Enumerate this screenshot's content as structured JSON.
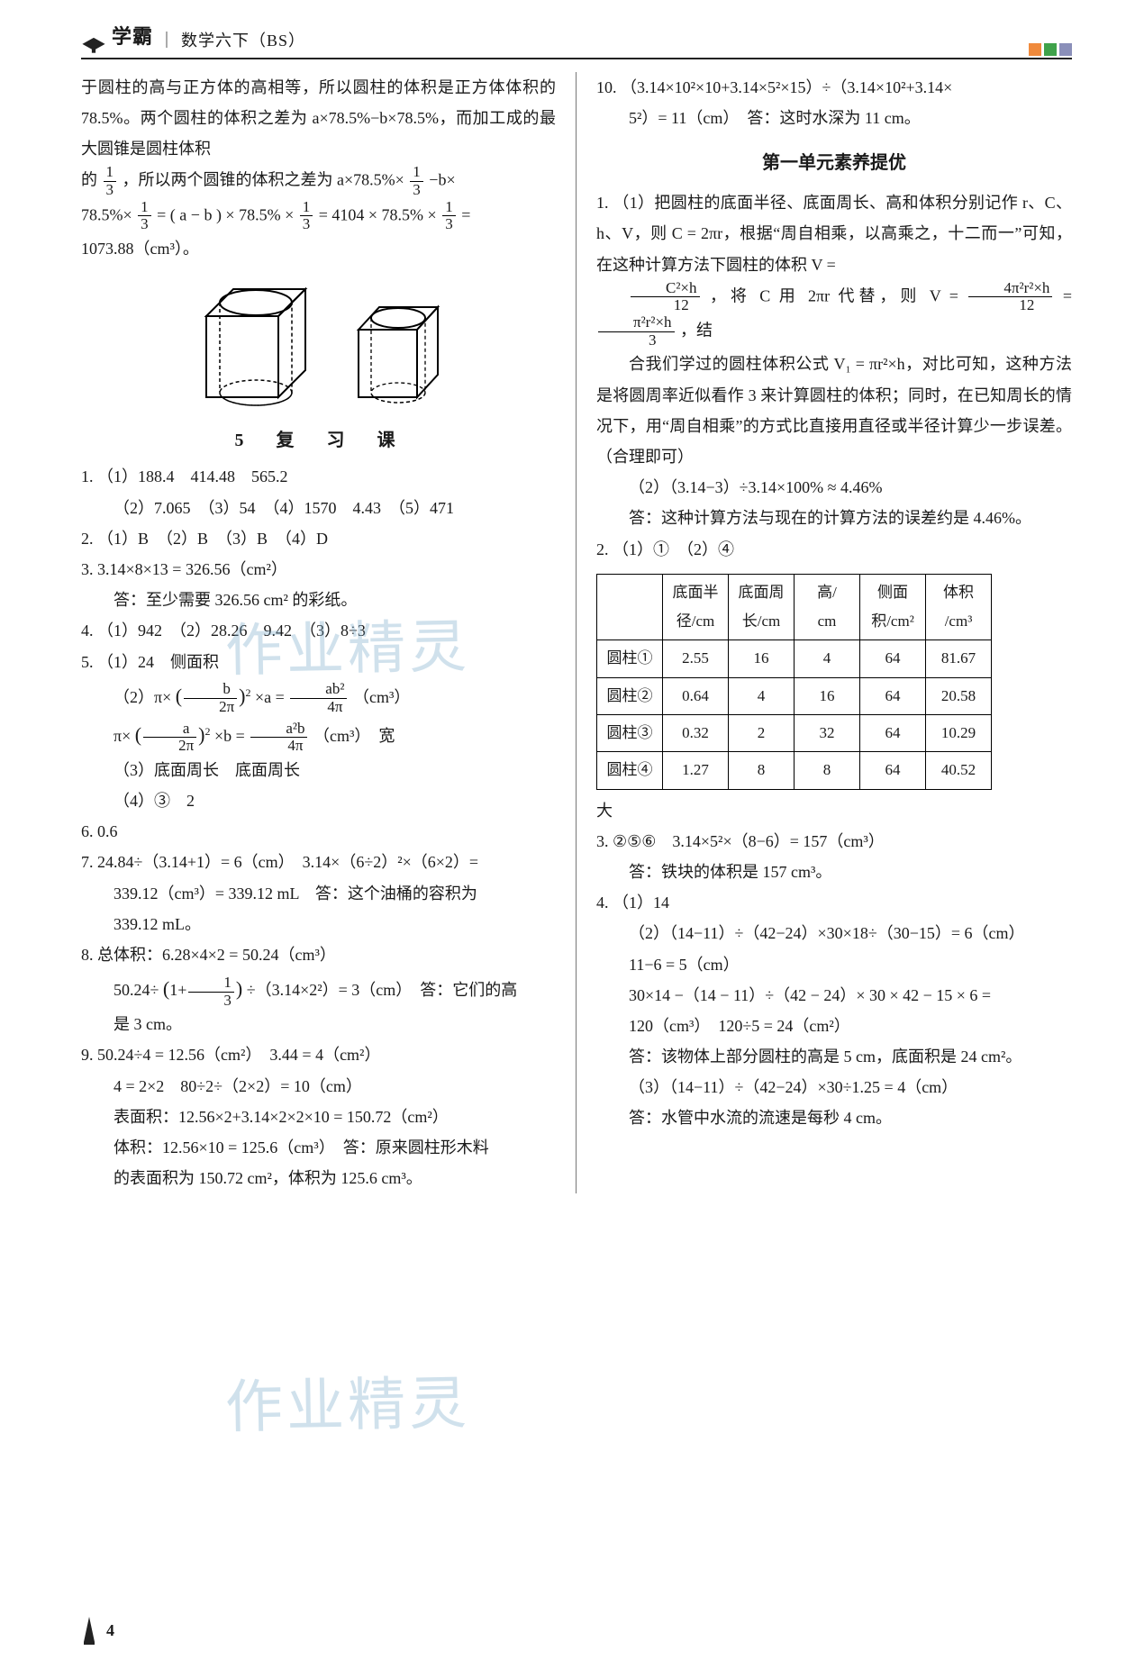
{
  "header": {
    "brand": "学霸",
    "divider": "｜",
    "subject": "数学六下（BS）",
    "square_colors": [
      "#f08a3c",
      "#3fa24a",
      "#8a8fb9"
    ]
  },
  "watermark": "作业精灵",
  "page_number": "4",
  "left": {
    "intro_lines": [
      "于圆柱的高与正方体的高相等，所以圆柱的体积是正方体体积的 78.5%。两个圆柱的体积之差为 a×78.5%−b×78.5%，而加工成的最大圆锥是圆柱体积"
    ],
    "frac_line1_pre": "的",
    "frac_line1_post": "，所以两个圆锥的体积之差为 a×78.5%×",
    "frac_line1_tail": "−b×",
    "eq2_pre": "78.5%×",
    "eq2_mid1": " = ( a − b ) × 78.5% × ",
    "eq2_mid2": " = 4104 × 78.5% × ",
    "eq2_tail": " =",
    "result1": "1073.88（cm³）。",
    "section5_title": "5　复　习　课",
    "items": {
      "q1": {
        "a": "（1）188.4　414.48　565.2",
        "b": "（2）7.065　（3）54　（4）1570　4.43　（5）471"
      },
      "q2": "（1）B　（2）B　（3）B　（4）D",
      "q3a": "3.14×8×13 = 326.56（cm²）",
      "q3b": "答：至少需要 326.56 cm² 的彩纸。",
      "q4": "（1）942　（2）28.26　9.42　（3）8÷3",
      "q5a": "（1）24　侧面积",
      "q5b_pre": "（2）π×",
      "q5b_mid": "×a =",
      "q5b_unit": "（cm³）",
      "q5c_pre": "π×",
      "q5c_mid": "×b =",
      "q5c_unit": "（cm³）　宽",
      "q5d": "（3）底面周长　底面周长",
      "q5e": "（4）③　2",
      "q6": "0.6",
      "q7a": "24.84÷（3.14+1）= 6（cm）　3.14×（6÷2）²×（6×2）=",
      "q7b": "339.12（cm³）= 339.12 mL　答：这个油桶的容积为",
      "q7c": "339.12 mL。",
      "q8a": "总体积：6.28×4×2 = 50.24（cm³）",
      "q8b_pre": "50.24÷",
      "q8b_mid": "÷（3.14×2²）= 3（cm）　答：它们的高",
      "q8c": "是 3 cm。",
      "q9a": "50.24÷4 = 12.56（cm²）　3.44 = 4（cm²）",
      "q9b": "4 = 2×2　80÷2÷（2×2）= 10（cm）",
      "q9c": "表面积：12.56×2+3.14×2×2×10 = 150.72（cm²）",
      "q9d": "体积：12.56×10 = 125.6（cm³）　答：原来圆柱形木料",
      "q9e": "的表面积为 150.72 cm²，体积为 125.6 cm³。"
    }
  },
  "right": {
    "q10a": "（3.14×10²×10+3.14×5²×15）÷（3.14×10²+3.14×",
    "q10b": "5²）= 11（cm）　答：这时水深为 11 cm。",
    "unit_title": "第一单元素养提优",
    "q1_1a": "（1）把圆柱的底面半径、底面周长、高和体积分别记作 r、C、h、V，则 C = 2πr，根据“周自相乘，以高乘之，十二而一”可知，在这种计算方法下圆柱的体积 V =",
    "q1_1b_mid": "，将 C 用 2πr 代替，则 V =",
    "q1_1b_tail": "，结",
    "q1_1c": "合我们学过的圆柱体积公式 V₁ = πr²×h，对比可知，这种方法是将圆周率近似看作 3 来计算圆柱的体积；同时，在已知周长的情况下，用“周自相乘”的方式比直接用直径或半径计算少一步误差。（合理即可）",
    "q1_2a": "（2）（3.14−3）÷3.14×100% ≈ 4.46%",
    "q1_2b": "答：这种计算方法与现在的计算方法的误差约是 4.46%。",
    "q2_line": "（1）①　（2）④",
    "table": {
      "headers": [
        "",
        "底面半径/cm",
        "底面周长/cm",
        "高/cm",
        "侧面积/cm²",
        "体积/cm³"
      ],
      "rows": [
        [
          "圆柱①",
          "2.55",
          "16",
          "4",
          "64",
          "81.67"
        ],
        [
          "圆柱②",
          "0.64",
          "4",
          "16",
          "64",
          "20.58"
        ],
        [
          "圆柱③",
          "0.32",
          "2",
          "32",
          "64",
          "10.29"
        ],
        [
          "圆柱④",
          "1.27",
          "8",
          "8",
          "64",
          "40.52"
        ]
      ]
    },
    "table_tail": "大",
    "q3a": "②⑤⑥　3.14×5²×（8−6）= 157（cm³）",
    "q3b": "答：铁块的体积是 157 cm³。",
    "q4_1": "（1）14",
    "q4_2a": "（2）（14−11）÷（42−24）×30×18÷（30−15）= 6（cm）",
    "q4_2b": "11−6 = 5（cm）",
    "q4_2c": "30×14 −（14 − 11）÷（42 − 24）× 30 × 42 − 15 × 6 =",
    "q4_2d": "120（cm³）　120÷5 = 24（cm²）",
    "q4_2e": "答：该物体上部分圆柱的高是 5 cm，底面积是 24 cm²。",
    "q4_3a": "（3）（14−11）÷（42−24）×30÷1.25 = 4（cm）",
    "q4_3b": "答：水管中水流的流速是每秒 4 cm。"
  }
}
